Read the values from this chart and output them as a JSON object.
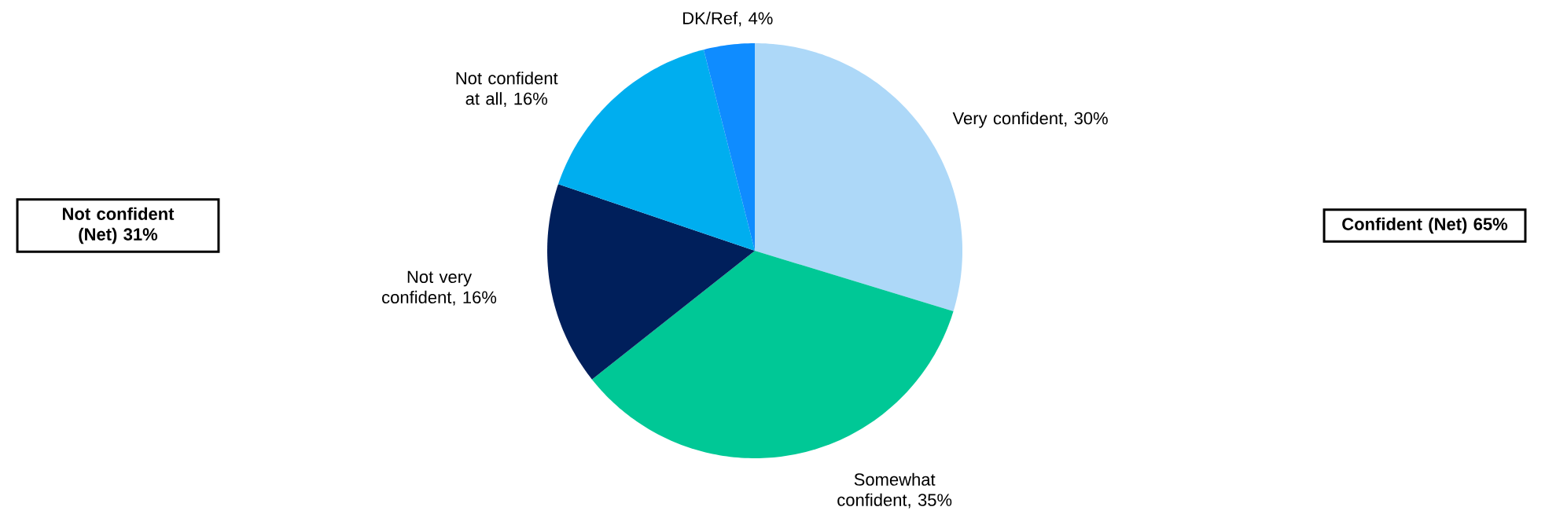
{
  "chart_data": {
    "type": "pie",
    "categories": [
      "Very confident, 30%",
      "Somewhat confident, 35%",
      "Not very confident, 16%",
      "Not confident at all, 16%",
      "DK/Ref, 4%"
    ],
    "values": [
      30,
      35,
      16,
      16,
      4
    ],
    "colors": [
      "#add8f8",
      "#00c896",
      "#001f5b",
      "#00aeef",
      "#0f8cff"
    ],
    "annotations": [
      "Not confident (Net) 31%",
      "Confident (Net) 65%"
    ]
  }
}
